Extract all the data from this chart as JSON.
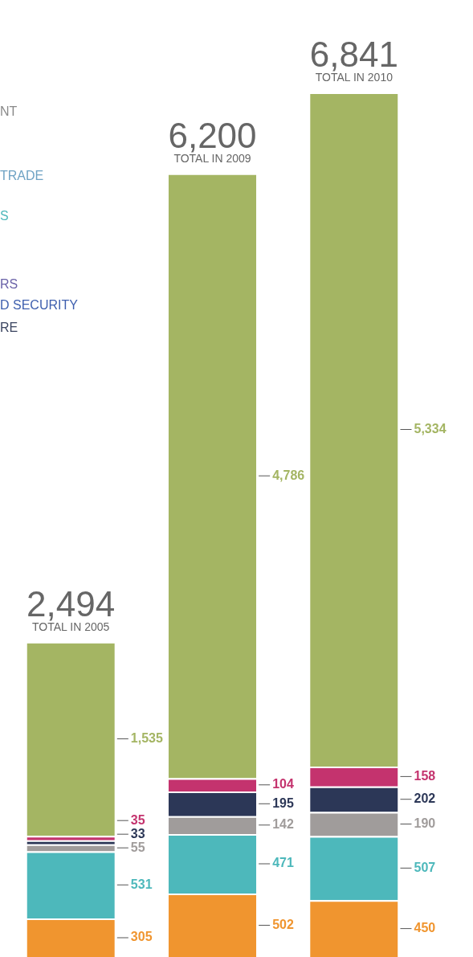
{
  "chart_data": {
    "type": "bar",
    "stacked": true,
    "legend": false,
    "categories": [
      "TOTAL IN 2005",
      "TOTAL IN 2009",
      "TOTAL IN 2010"
    ],
    "totals": [
      "2,494",
      "6,200",
      "6,841"
    ],
    "series": [
      {
        "color": "#f0952f",
        "values": [
          305,
          502,
          450
        ],
        "value_labels": [
          "305",
          "502",
          "450"
        ]
      },
      {
        "color": "#4db8bb",
        "values": [
          531,
          471,
          507
        ],
        "value_labels": [
          "531",
          "471",
          "507"
        ]
      },
      {
        "color": "#a09c9b",
        "values": [
          55,
          142,
          190
        ],
        "value_labels": [
          "55",
          "142",
          "190"
        ]
      },
      {
        "color": "#2c3757",
        "values": [
          33,
          195,
          202
        ],
        "value_labels": [
          "33",
          "195",
          "202"
        ]
      },
      {
        "color": "#c4336e",
        "values": [
          35,
          104,
          158
        ],
        "value_labels": [
          "35",
          "104",
          "158"
        ]
      },
      {
        "color": "#a4b563",
        "values": [
          1535,
          4786,
          5334
        ],
        "value_labels": [
          "1,535",
          "4,786",
          "5,334"
        ]
      }
    ],
    "annotations": [
      "NT",
      "TRADE",
      "S",
      "RS",
      "D SECURITY",
      "RE"
    ]
  }
}
